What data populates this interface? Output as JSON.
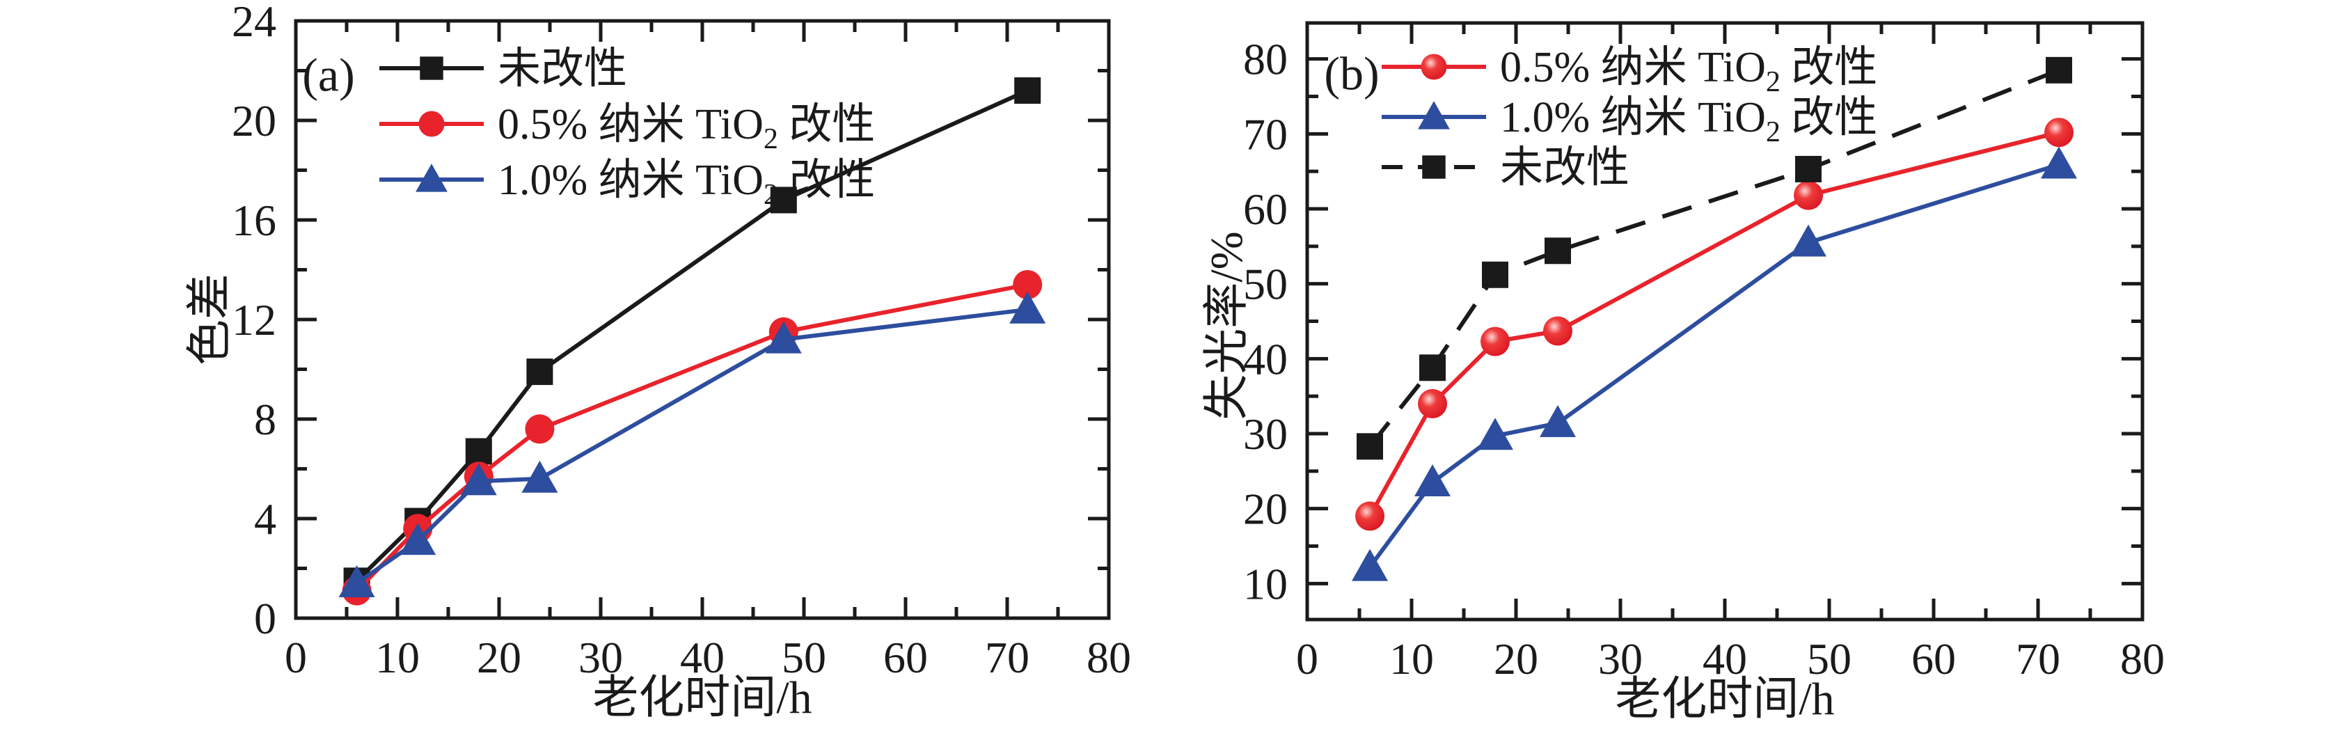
{
  "figure": {
    "background": "#ffffff",
    "description_colors": {
      "black": "#1a1a1a",
      "red": "#e8232b",
      "blue": "#2d4d9e"
    }
  },
  "chart_data": [
    {
      "id": "a",
      "type": "line",
      "panel_label": "(a)",
      "xlabel": "老化时间/h",
      "ylabel": "色差",
      "xlim": [
        0,
        80
      ],
      "ylim": [
        0,
        24
      ],
      "xticks": [
        0,
        10,
        20,
        30,
        40,
        50,
        60,
        70,
        80
      ],
      "yticks": [
        0,
        4,
        8,
        12,
        16,
        20,
        24
      ],
      "x_minor_step": 5,
      "y_minor_step": 2,
      "grid": "off",
      "legend_position": "top-left-inside",
      "x": [
        6,
        12,
        18,
        24,
        48,
        72
      ],
      "series": [
        {
          "name": "未改性",
          "color": "#1a1a1a",
          "marker": "square",
          "line": "solid",
          "values": [
            1.5,
            3.9,
            6.7,
            9.9,
            16.8,
            21.2
          ]
        },
        {
          "name": "0.5% 纳米 TiO2 改性",
          "label_parts": {
            "pre": "0.5% 纳米 TiO",
            "sub": "2",
            "post": " 改性"
          },
          "color": "#e8232b",
          "marker": "circle",
          "line": "solid",
          "values": [
            1.1,
            3.6,
            5.7,
            7.6,
            11.5,
            13.4
          ]
        },
        {
          "name": "1.0% 纳米 TiO2 改性",
          "label_parts": {
            "pre": "1.0% 纳米 TiO",
            "sub": "2",
            "post": " 改性"
          },
          "color": "#2d4d9e",
          "marker": "triangle",
          "line": "solid",
          "values": [
            1.4,
            3.1,
            5.5,
            5.6,
            11.2,
            12.4
          ]
        }
      ]
    },
    {
      "id": "b",
      "type": "line",
      "panel_label": "(b)",
      "xlabel": "老化时间/h",
      "ylabel": "失光率/%",
      "xlim": [
        0,
        80
      ],
      "ylim": [
        5.2,
        84.8
      ],
      "xticks": [
        0,
        10,
        20,
        30,
        40,
        50,
        60,
        70,
        80
      ],
      "yticks": [
        10,
        20,
        30,
        40,
        50,
        60,
        70,
        80
      ],
      "x_minor_step": 5,
      "y_minor_step": 5,
      "grid": "off",
      "legend_position": "top-left-inside",
      "x": [
        6,
        12,
        18,
        24,
        48,
        72
      ],
      "series": [
        {
          "name": "0.5% 纳米 TiO2 改性",
          "label_parts": {
            "pre": "0.5% 纳米 TiO",
            "sub": "2",
            "post": " 改性"
          },
          "color": "#e8232b",
          "marker": "circle",
          "marker_variant": "glossy",
          "line": "solid",
          "values": [
            19.0,
            34.0,
            42.3,
            43.7,
            61.8,
            70.2
          ]
        },
        {
          "name": "1.0% 纳米 TiO2 改性",
          "label_parts": {
            "pre": "1.0% 纳米 TiO",
            "sub": "2",
            "post": " 改性"
          },
          "color": "#2d4d9e",
          "marker": "triangle",
          "line": "solid",
          "values": [
            12.2,
            23.5,
            29.7,
            31.4,
            55.5,
            65.9
          ]
        },
        {
          "name": "未改性",
          "color": "#1a1a1a",
          "marker": "square",
          "line": "dashed",
          "values": [
            28.3,
            38.8,
            51.2,
            54.4,
            65.3,
            78.5
          ]
        }
      ]
    }
  ]
}
